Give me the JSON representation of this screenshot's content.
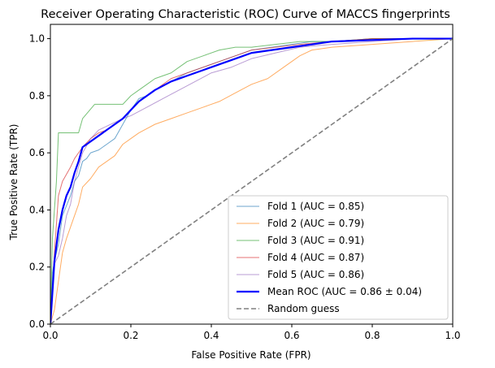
{
  "chart_data": {
    "type": "line",
    "title": "Receiver Operating Characteristic (ROC) Curve of MACCS fingerprints",
    "xlabel": "False Positive Rate (FPR)",
    "ylabel": "True Positive Rate (TPR)",
    "xlim": [
      0,
      1
    ],
    "ylim": [
      0,
      1.05
    ],
    "x_ticks": [
      "0.0",
      "0.2",
      "0.4",
      "0.6",
      "0.8",
      "1.0"
    ],
    "y_ticks": [
      "0.0",
      "0.2",
      "0.4",
      "0.6",
      "0.8",
      "1.0"
    ],
    "grid": false,
    "legend_position": "lower-right",
    "series": [
      {
        "name": "Fold 1 (AUC = 0.85)",
        "color": "#1f77b4",
        "style": "solid",
        "emphasis": "thin",
        "x": [
          0,
          0.005,
          0.01,
          0.02,
          0.03,
          0.05,
          0.06,
          0.07,
          0.08,
          0.09,
          0.1,
          0.12,
          0.14,
          0.16,
          0.18,
          0.2,
          0.22,
          0.24,
          0.26,
          0.3,
          0.34,
          0.38,
          0.42,
          0.46,
          0.5,
          0.55,
          0.6,
          0.65,
          0.7,
          0.8,
          0.9,
          1.0
        ],
        "y": [
          0,
          0.18,
          0.22,
          0.28,
          0.38,
          0.45,
          0.5,
          0.52,
          0.57,
          0.58,
          0.6,
          0.61,
          0.63,
          0.65,
          0.7,
          0.75,
          0.79,
          0.8,
          0.82,
          0.85,
          0.88,
          0.9,
          0.92,
          0.94,
          0.96,
          0.97,
          0.98,
          0.99,
          0.99,
          1.0,
          1.0,
          1.0
        ]
      },
      {
        "name": "Fold 2 (AUC = 0.79)",
        "color": "#ff7f0e",
        "style": "solid",
        "emphasis": "thin",
        "x": [
          0,
          0.01,
          0.02,
          0.03,
          0.04,
          0.06,
          0.07,
          0.08,
          0.1,
          0.12,
          0.16,
          0.18,
          0.2,
          0.22,
          0.26,
          0.3,
          0.34,
          0.38,
          0.42,
          0.46,
          0.5,
          0.54,
          0.58,
          0.6,
          0.62,
          0.65,
          0.7,
          0.8,
          0.9,
          1.0
        ],
        "y": [
          0,
          0.05,
          0.15,
          0.25,
          0.3,
          0.38,
          0.42,
          0.48,
          0.51,
          0.55,
          0.59,
          0.63,
          0.65,
          0.67,
          0.7,
          0.72,
          0.74,
          0.76,
          0.78,
          0.81,
          0.84,
          0.86,
          0.9,
          0.92,
          0.94,
          0.96,
          0.97,
          0.98,
          0.99,
          1.0
        ]
      },
      {
        "name": "Fold 3 (AUC = 0.91)",
        "color": "#2ca02c",
        "style": "solid",
        "emphasis": "thin",
        "x": [
          0,
          0.005,
          0.015,
          0.02,
          0.07,
          0.08,
          0.11,
          0.18,
          0.2,
          0.22,
          0.24,
          0.26,
          0.28,
          0.3,
          0.32,
          0.34,
          0.38,
          0.42,
          0.46,
          0.5,
          0.56,
          0.62,
          0.7,
          0.8,
          0.9,
          1.0
        ],
        "y": [
          0,
          0.3,
          0.5,
          0.67,
          0.67,
          0.72,
          0.77,
          0.77,
          0.8,
          0.82,
          0.84,
          0.86,
          0.87,
          0.88,
          0.9,
          0.92,
          0.94,
          0.96,
          0.97,
          0.97,
          0.98,
          0.99,
          0.99,
          1.0,
          1.0,
          1.0
        ]
      },
      {
        "name": "Fold 4 (AUC = 0.87)",
        "color": "#d62728",
        "style": "solid",
        "emphasis": "thin",
        "x": [
          0,
          0.01,
          0.015,
          0.02,
          0.03,
          0.05,
          0.06,
          0.07,
          0.08,
          0.1,
          0.12,
          0.14,
          0.16,
          0.18,
          0.2,
          0.22,
          0.26,
          0.3,
          0.34,
          0.38,
          0.42,
          0.46,
          0.5,
          0.56,
          0.62,
          0.7,
          0.8,
          0.9,
          1.0
        ],
        "y": [
          0,
          0.25,
          0.35,
          0.45,
          0.5,
          0.55,
          0.58,
          0.6,
          0.62,
          0.65,
          0.67,
          0.68,
          0.7,
          0.72,
          0.75,
          0.78,
          0.82,
          0.86,
          0.88,
          0.9,
          0.92,
          0.94,
          0.96,
          0.97,
          0.98,
          0.99,
          1.0,
          1.0,
          1.0
        ]
      },
      {
        "name": "Fold 5 (AUC = 0.86)",
        "color": "#9467bd",
        "style": "solid",
        "emphasis": "thin",
        "x": [
          0,
          0.01,
          0.02,
          0.03,
          0.04,
          0.05,
          0.06,
          0.07,
          0.08,
          0.1,
          0.12,
          0.15,
          0.18,
          0.2,
          0.24,
          0.28,
          0.32,
          0.36,
          0.4,
          0.45,
          0.5,
          0.56,
          0.62,
          0.7,
          0.8,
          0.9,
          1.0
        ],
        "y": [
          0,
          0.21,
          0.24,
          0.3,
          0.38,
          0.42,
          0.5,
          0.55,
          0.6,
          0.65,
          0.68,
          0.7,
          0.72,
          0.73,
          0.76,
          0.79,
          0.82,
          0.85,
          0.88,
          0.9,
          0.93,
          0.95,
          0.97,
          0.98,
          0.99,
          1.0,
          1.0
        ]
      },
      {
        "name": "Mean ROC (AUC = 0.86 ± 0.04)",
        "color": "#0000ff",
        "style": "solid",
        "emphasis": "thick",
        "x": [
          0,
          0.01,
          0.02,
          0.03,
          0.04,
          0.05,
          0.06,
          0.07,
          0.08,
          0.09,
          0.1,
          0.12,
          0.14,
          0.16,
          0.18,
          0.2,
          0.22,
          0.24,
          0.26,
          0.3,
          0.34,
          0.38,
          0.42,
          0.46,
          0.5,
          0.55,
          0.6,
          0.65,
          0.7,
          0.8,
          0.9,
          1.0
        ],
        "y": [
          0,
          0.22,
          0.33,
          0.4,
          0.45,
          0.48,
          0.53,
          0.57,
          0.62,
          0.63,
          0.64,
          0.66,
          0.68,
          0.7,
          0.72,
          0.75,
          0.78,
          0.8,
          0.82,
          0.85,
          0.87,
          0.89,
          0.91,
          0.93,
          0.95,
          0.96,
          0.97,
          0.98,
          0.99,
          0.995,
          1.0,
          1.0
        ]
      },
      {
        "name": "Random guess",
        "color": "#808080",
        "style": "dashed",
        "emphasis": "medium",
        "x": [
          0,
          1
        ],
        "y": [
          0,
          1
        ]
      }
    ]
  }
}
